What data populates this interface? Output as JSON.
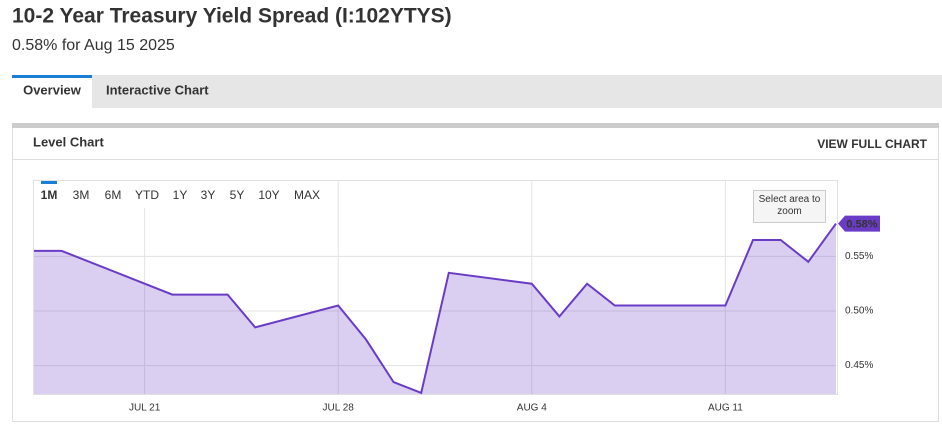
{
  "header": {
    "title": "10-2 Year Treasury Yield Spread (I:102YTYS)",
    "subtitle": "0.58% for Aug 15 2025"
  },
  "tabs": [
    "Overview",
    "Interactive Chart"
  ],
  "card": {
    "title": "Level Chart",
    "action": "VIEW FULL CHART"
  },
  "range_buttons": [
    "1M",
    "3M",
    "6M",
    "YTD",
    "1Y",
    "3Y",
    "5Y",
    "10Y",
    "MAX"
  ],
  "zoom_hint": "Select area to zoom",
  "chart_data": {
    "type": "area",
    "x": [
      "Jul 17",
      "Jul 18",
      "Jul 22",
      "Jul 23",
      "Jul 24",
      "Jul 25",
      "Jul 28",
      "Jul 29",
      "Jul 30",
      "Jul 31",
      "Aug 1",
      "Aug 4",
      "Aug 5",
      "Aug 6",
      "Aug 7",
      "Aug 8",
      "Aug 11",
      "Aug 12",
      "Aug 13",
      "Aug 14",
      "Aug 15"
    ],
    "series": [
      {
        "name": "10-2 Year Treasury Yield Spread",
        "color": "#6a3cc6",
        "values": [
          0.555,
          0.555,
          0.515,
          0.515,
          0.515,
          0.485,
          0.505,
          0.474,
          0.435,
          0.425,
          0.535,
          0.525,
          0.495,
          0.525,
          0.505,
          0.505,
          0.505,
          0.565,
          0.565,
          0.545,
          0.58
        ]
      }
    ],
    "last_label": "0.58%",
    "xlim": [
      "Jul 17",
      "Aug 15"
    ],
    "xticks": [
      {
        "value": "Jul 21",
        "label": "JUL 21"
      },
      {
        "value": "Jul 28",
        "label": "JUL 28"
      },
      {
        "value": "Aug 4",
        "label": "AUG 4"
      },
      {
        "value": "Aug 11",
        "label": "AUG 11"
      }
    ],
    "ylim": [
      0.424,
      0.619
    ],
    "yticks": [
      {
        "value": 0.45,
        "label": "0.45%"
      },
      {
        "value": 0.5,
        "label": "0.50%"
      },
      {
        "value": 0.55,
        "label": "0.55%"
      }
    ],
    "grid": true
  }
}
